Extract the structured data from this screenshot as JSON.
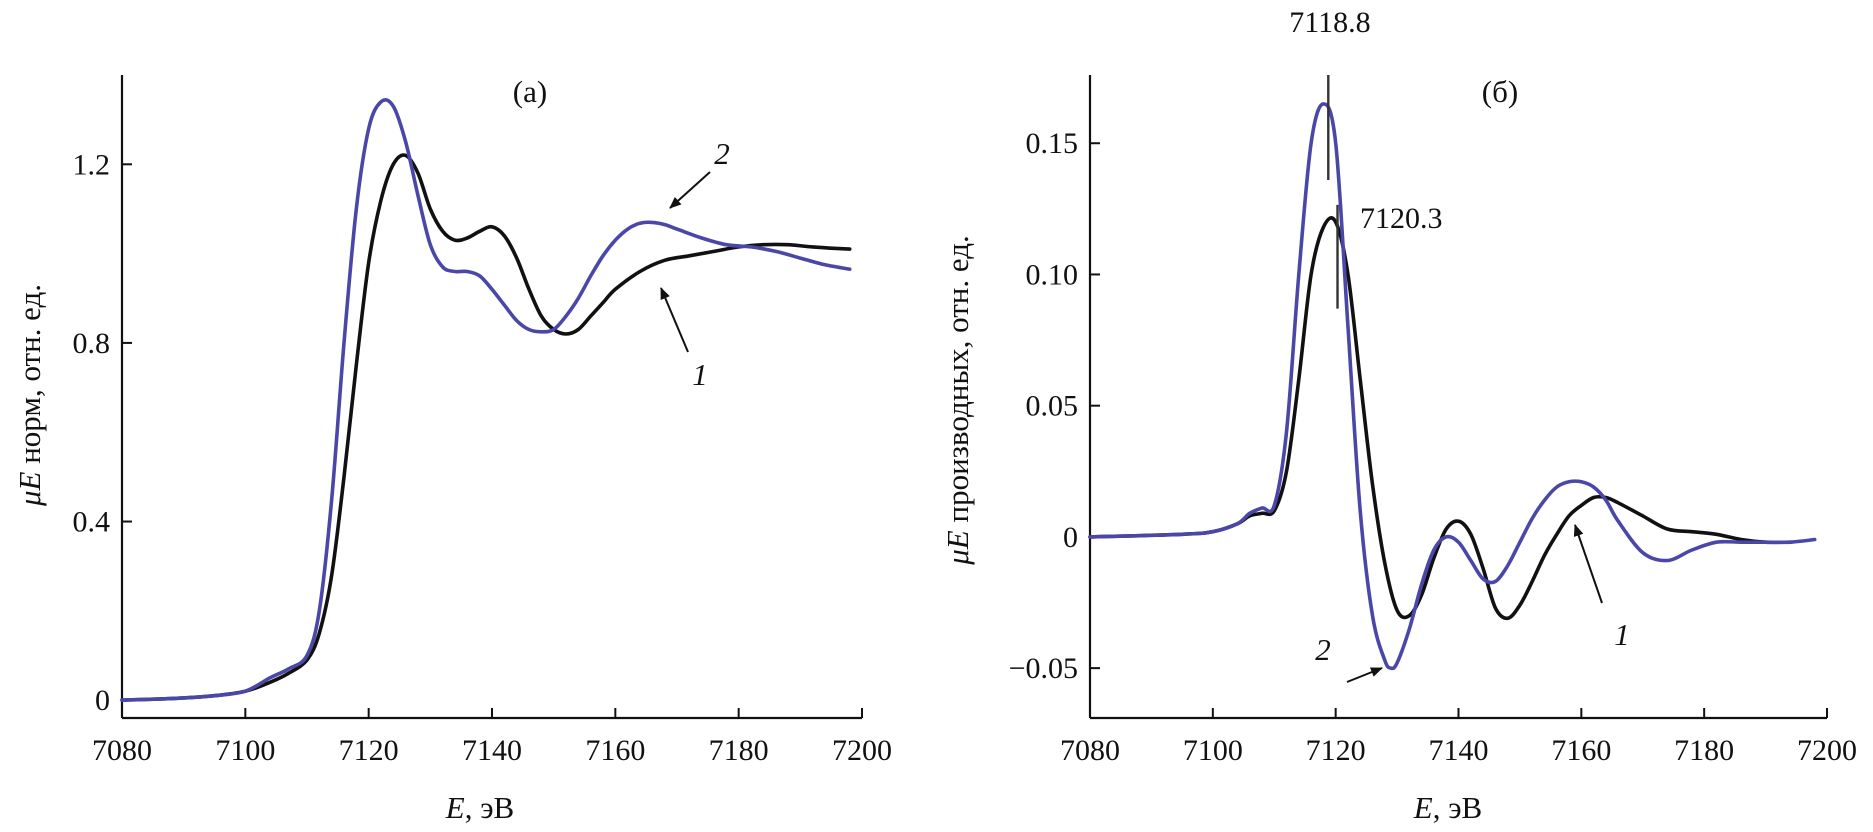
{
  "colors": {
    "series_1": "#111111",
    "series_2": "#4b47a8",
    "axis": "#111111"
  },
  "chart_data": [
    {
      "type": "line",
      "panel_label": "(а)",
      "xlabel": {
        "symbol": "E",
        "unit": ", эВ"
      },
      "ylabel": {
        "symbol": "μE",
        "text": " норм, отн. ед."
      },
      "xlim": [
        7080,
        7200
      ],
      "ylim": [
        -0.04,
        1.4
      ],
      "x_ticks": [
        {
          "value": 7080,
          "label": "7080"
        },
        {
          "value": 7100,
          "label": "7100"
        },
        {
          "value": 7120,
          "label": "7120"
        },
        {
          "value": 7140,
          "label": "7140"
        },
        {
          "value": 7160,
          "label": "7160"
        },
        {
          "value": 7180,
          "label": "7180"
        },
        {
          "value": 7200,
          "label": "7200"
        }
      ],
      "y_ticks": [
        {
          "value": 0,
          "label": "0"
        },
        {
          "value": 0.4,
          "label": "0.4"
        },
        {
          "value": 0.8,
          "label": "0.8"
        },
        {
          "value": 1.2,
          "label": "1.2"
        }
      ],
      "series": [
        {
          "name": "1",
          "color": "#111111",
          "x": [
            7080,
            7090,
            7095,
            7100,
            7104,
            7107,
            7110,
            7112,
            7114,
            7116,
            7118,
            7120,
            7122,
            7124,
            7126,
            7128,
            7130,
            7132,
            7134,
            7136,
            7138,
            7140,
            7142,
            7144,
            7146,
            7148,
            7150,
            7152,
            7154,
            7156,
            7158,
            7160,
            7164,
            7168,
            7172,
            7176,
            7180,
            7184,
            7188,
            7192,
            7198
          ],
          "y": [
            0,
            0.005,
            0.01,
            0.02,
            0.04,
            0.06,
            0.09,
            0.15,
            0.28,
            0.5,
            0.75,
            0.98,
            1.12,
            1.2,
            1.22,
            1.18,
            1.1,
            1.05,
            1.03,
            1.035,
            1.05,
            1.06,
            1.04,
            0.99,
            0.92,
            0.86,
            0.83,
            0.82,
            0.83,
            0.86,
            0.89,
            0.92,
            0.96,
            0.985,
            0.995,
            1.005,
            1.015,
            1.02,
            1.02,
            1.015,
            1.01
          ]
        },
        {
          "name": "2",
          "color": "#4b47a8",
          "x": [
            7080,
            7090,
            7095,
            7100,
            7104,
            7107,
            7110,
            7112,
            7114,
            7116,
            7118,
            7120,
            7122,
            7124,
            7126,
            7128,
            7130,
            7132,
            7134,
            7136,
            7138,
            7140,
            7142,
            7144,
            7146,
            7148,
            7150,
            7152,
            7154,
            7156,
            7158,
            7160,
            7162,
            7164,
            7166,
            7168,
            7170,
            7174,
            7178,
            7182,
            7186,
            7190,
            7194,
            7198
          ],
          "y": [
            0,
            0.005,
            0.01,
            0.02,
            0.05,
            0.07,
            0.1,
            0.2,
            0.45,
            0.8,
            1.1,
            1.28,
            1.34,
            1.33,
            1.25,
            1.13,
            1.02,
            0.97,
            0.96,
            0.96,
            0.95,
            0.92,
            0.885,
            0.85,
            0.83,
            0.825,
            0.83,
            0.86,
            0.9,
            0.95,
            0.995,
            1.03,
            1.055,
            1.068,
            1.07,
            1.065,
            1.055,
            1.035,
            1.02,
            1.015,
            1.005,
            0.99,
            0.975,
            0.965
          ]
        }
      ],
      "annotations": [
        {
          "text": "2",
          "series": "2"
        },
        {
          "text": "1",
          "series": "1"
        }
      ]
    },
    {
      "type": "line",
      "panel_label": "(б)",
      "xlabel": {
        "symbol": "E",
        "unit": ", эВ"
      },
      "ylabel": {
        "symbol": "μE",
        "text": " производных, отн. ед."
      },
      "xlim": [
        7080,
        7200
      ],
      "ylim": [
        -0.069,
        0.176
      ],
      "x_ticks": [
        {
          "value": 7080,
          "label": "7080"
        },
        {
          "value": 7100,
          "label": "7100"
        },
        {
          "value": 7120,
          "label": "7120"
        },
        {
          "value": 7140,
          "label": "7140"
        },
        {
          "value": 7160,
          "label": "7160"
        },
        {
          "value": 7180,
          "label": "7180"
        },
        {
          "value": 7200,
          "label": "7200"
        }
      ],
      "y_ticks": [
        {
          "value": -0.05,
          "label": "−0.05"
        },
        {
          "value": 0,
          "label": "0"
        },
        {
          "value": 0.05,
          "label": "0.05"
        },
        {
          "value": 0.1,
          "label": "0.10"
        },
        {
          "value": 0.15,
          "label": "0.15"
        }
      ],
      "peak_markers": [
        {
          "x": 7118.8,
          "label": "7118.8"
        },
        {
          "x": 7120.3,
          "label": "7120.3"
        }
      ],
      "series": [
        {
          "name": "1",
          "color": "#111111",
          "x": [
            7080,
            7095,
            7100,
            7104,
            7106,
            7108,
            7110,
            7112,
            7114,
            7116,
            7118,
            7120,
            7122,
            7124,
            7126,
            7128,
            7130,
            7132,
            7134,
            7136,
            7138,
            7140,
            7142,
            7144,
            7146,
            7148,
            7150,
            7152,
            7154,
            7156,
            7158,
            7160,
            7162,
            7164,
            7166,
            7170,
            7174,
            7178,
            7182,
            7186,
            7190,
            7194
          ],
          "y": [
            0,
            0.001,
            0.002,
            0.005,
            0.008,
            0.009,
            0.01,
            0.025,
            0.06,
            0.1,
            0.118,
            0.12,
            0.1,
            0.06,
            0.02,
            -0.01,
            -0.028,
            -0.03,
            -0.022,
            -0.008,
            0.003,
            0.006,
            0.001,
            -0.012,
            -0.027,
            -0.031,
            -0.026,
            -0.017,
            -0.007,
            0.001,
            0.008,
            0.012,
            0.015,
            0.015,
            0.013,
            0.008,
            0.003,
            0.002,
            0.001,
            -0.001,
            -0.002,
            -0.002
          ]
        },
        {
          "name": "2",
          "color": "#4b47a8",
          "x": [
            7080,
            7095,
            7100,
            7104,
            7106,
            7108,
            7110,
            7112,
            7114,
            7116,
            7118,
            7120,
            7122,
            7124,
            7126,
            7128,
            7129,
            7130,
            7132,
            7134,
            7136,
            7138,
            7140,
            7142,
            7144,
            7146,
            7148,
            7150,
            7152,
            7154,
            7156,
            7158,
            7160,
            7162,
            7164,
            7166,
            7170,
            7174,
            7178,
            7182,
            7186,
            7190,
            7194,
            7198
          ],
          "y": [
            0,
            0.001,
            0.002,
            0.005,
            0.009,
            0.011,
            0.012,
            0.04,
            0.1,
            0.15,
            0.165,
            0.15,
            0.08,
            0.01,
            -0.03,
            -0.047,
            -0.05,
            -0.048,
            -0.035,
            -0.018,
            -0.005,
            0,
            -0.002,
            -0.009,
            -0.016,
            -0.017,
            -0.011,
            -0.002,
            0.007,
            0.014,
            0.019,
            0.021,
            0.021,
            0.019,
            0.014,
            0.006,
            -0.006,
            -0.009,
            -0.005,
            -0.002,
            -0.002,
            -0.002,
            -0.002,
            -0.001
          ]
        }
      ],
      "annotations": [
        {
          "text": "2",
          "series": "2"
        },
        {
          "text": "1",
          "series": "1"
        }
      ]
    }
  ]
}
